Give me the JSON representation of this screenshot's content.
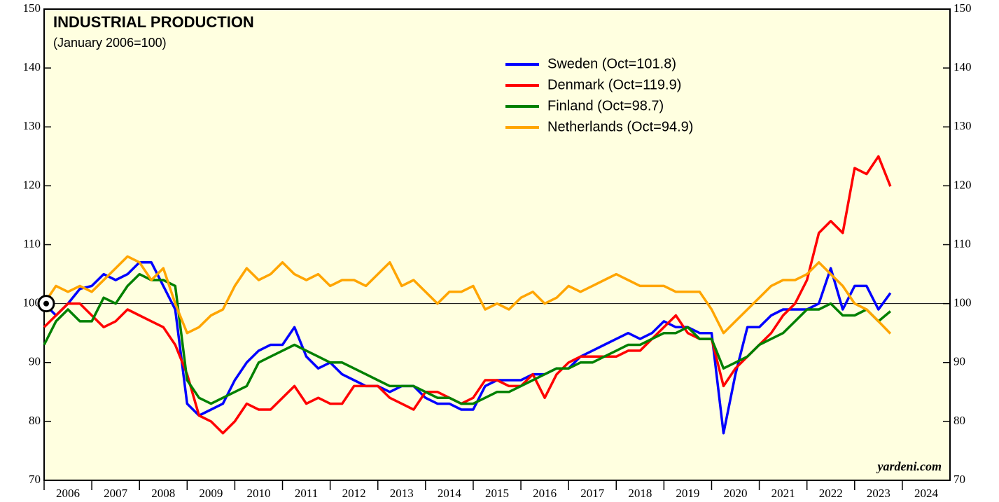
{
  "chart_data": {
    "type": "line",
    "title": "INDUSTRIAL PRODUCTION",
    "subtitle": "(January 2006=100)",
    "annotation": "yardeni.com",
    "legend": "upper center",
    "reference_line": 100,
    "xlim": [
      2006,
      2025
    ],
    "xticks": [
      2006,
      2007,
      2008,
      2009,
      2010,
      2011,
      2012,
      2013,
      2014,
      2015,
      2016,
      2017,
      2018,
      2019,
      2020,
      2021,
      2022,
      2023,
      2024
    ],
    "ylim": [
      70,
      150
    ],
    "yticks": [
      70,
      80,
      90,
      100,
      110,
      120,
      130,
      140,
      150
    ],
    "x": [
      2006,
      2006.25,
      2006.5,
      2006.75,
      2007,
      2007.25,
      2007.5,
      2007.75,
      2008,
      2008.25,
      2008.5,
      2008.75,
      2009,
      2009.25,
      2009.5,
      2009.75,
      2010,
      2010.25,
      2010.5,
      2010.75,
      2011,
      2011.25,
      2011.5,
      2011.75,
      2012,
      2012.25,
      2012.5,
      2012.75,
      2013,
      2013.25,
      2013.5,
      2013.75,
      2014,
      2014.25,
      2014.5,
      2014.75,
      2015,
      2015.25,
      2015.5,
      2015.75,
      2016,
      2016.25,
      2016.5,
      2016.75,
      2017,
      2017.25,
      2017.5,
      2017.75,
      2018,
      2018.25,
      2018.5,
      2018.75,
      2019,
      2019.25,
      2019.5,
      2019.75,
      2020,
      2020.25,
      2020.5,
      2020.75,
      2021,
      2021.25,
      2021.5,
      2021.75,
      2022,
      2022.25,
      2022.5,
      2022.75,
      2023,
      2023.25,
      2023.5,
      2023.75
    ],
    "series": [
      {
        "name": "Sweden (Oct=101.8)",
        "color": "#0000ff",
        "values": [
          100,
          98,
          100,
          102.5,
          103,
          105,
          104,
          105,
          107,
          107,
          103,
          99,
          83,
          81,
          82,
          83,
          87,
          90,
          92,
          93,
          93,
          96,
          91,
          89,
          90,
          88,
          87,
          86,
          86,
          85,
          86,
          86,
          84,
          83,
          83,
          82,
          82,
          86,
          87,
          87,
          87,
          88,
          88,
          89,
          89,
          91,
          92,
          93,
          94,
          95,
          94,
          95,
          97,
          96,
          96,
          95,
          95,
          78,
          88,
          96,
          96,
          98,
          99,
          99,
          99,
          100,
          106,
          99,
          103,
          103,
          99,
          101.8
        ]
      },
      {
        "name": "Denmark (Oct=119.9)",
        "color": "#ff0000",
        "values": [
          96,
          98,
          100,
          100,
          98,
          96,
          97,
          99,
          98,
          97,
          96,
          93,
          88,
          81,
          80,
          78,
          80,
          83,
          82,
          82,
          84,
          86,
          83,
          84,
          83,
          83,
          86,
          86,
          86,
          84,
          83,
          82,
          85,
          85,
          84,
          83,
          84,
          87,
          87,
          86,
          86,
          88,
          84,
          88,
          90,
          91,
          91,
          91,
          91,
          92,
          92,
          94,
          96,
          98,
          95,
          94,
          94,
          86,
          89,
          91,
          93,
          95,
          98,
          100,
          104,
          112,
          114,
          112,
          123,
          122,
          125,
          119.9
        ]
      },
      {
        "name": "Finland (Oct=98.7)",
        "color": "#008000",
        "values": [
          93,
          97,
          99,
          97,
          97,
          101,
          100,
          103,
          105,
          104,
          104,
          103,
          87,
          84,
          83,
          84,
          85,
          86,
          90,
          91,
          92,
          93,
          92,
          91,
          90,
          90,
          89,
          88,
          87,
          86,
          86,
          86,
          85,
          84,
          84,
          83,
          83,
          84,
          85,
          85,
          86,
          87,
          88,
          89,
          89,
          90,
          90,
          91,
          92,
          93,
          93,
          94,
          95,
          95,
          96,
          94,
          94,
          89,
          90,
          91,
          93,
          94,
          95,
          97,
          99,
          99,
          100,
          98,
          98,
          99,
          97,
          98.7
        ]
      },
      {
        "name": "Netherlands (Oct=94.9)",
        "color": "#ffa500",
        "values": [
          100,
          103,
          102,
          103,
          102,
          104,
          106,
          108,
          107,
          104,
          106,
          100,
          95,
          96,
          98,
          99,
          103,
          106,
          104,
          105,
          107,
          105,
          104,
          105,
          103,
          104,
          104,
          103,
          105,
          107,
          103,
          104,
          102,
          100,
          102,
          102,
          103,
          99,
          100,
          99,
          101,
          102,
          100,
          101,
          103,
          102,
          103,
          104,
          105,
          104,
          103,
          103,
          103,
          102,
          102,
          102,
          99,
          95,
          97,
          99,
          101,
          103,
          104,
          104,
          105,
          107,
          105,
          103,
          100,
          99,
          97,
          94.9
        ]
      }
    ]
  }
}
